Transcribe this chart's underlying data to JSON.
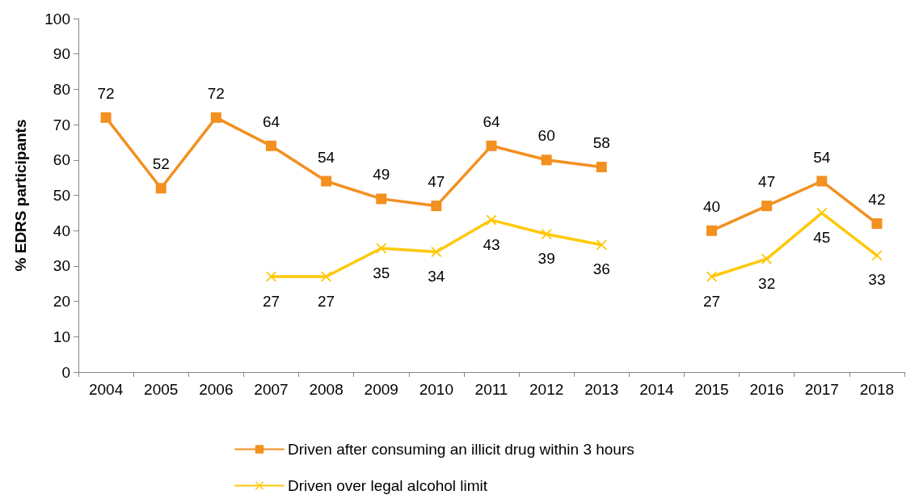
{
  "chart_data": {
    "type": "line",
    "ylabel": "% EDRS participants",
    "categories": [
      "2004",
      "2005",
      "2006",
      "2007",
      "2008",
      "2009",
      "2010",
      "2011",
      "2012",
      "2013",
      "2014",
      "2015",
      "2016",
      "2017",
      "2018"
    ],
    "series": [
      {
        "name": "Driven after consuming an illicit drug within 3 hours",
        "color": "#f39020",
        "marker": "square",
        "values": [
          72,
          52,
          72,
          64,
          54,
          49,
          47,
          64,
          60,
          58,
          null,
          40,
          47,
          54,
          42
        ]
      },
      {
        "name": "Driven over legal alcohol limit",
        "color": "#ffc80a",
        "marker": "cross",
        "values": [
          null,
          null,
          null,
          27,
          27,
          35,
          34,
          43,
          39,
          36,
          null,
          27,
          32,
          45,
          33
        ]
      }
    ],
    "ylim": [
      0,
      100
    ],
    "yticks": [
      0,
      10,
      20,
      30,
      40,
      50,
      60,
      70,
      80,
      90,
      100
    ],
    "grid": false,
    "legend": "bottom",
    "data_labels": true,
    "line_style": "solid"
  }
}
